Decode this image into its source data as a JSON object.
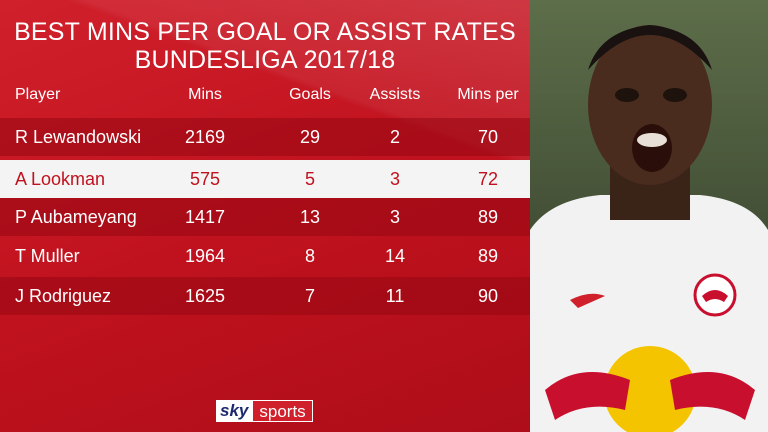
{
  "header": {
    "title_line1": "BEST MINS PER GOAL OR ASSIST RATES",
    "title_line2": "BUNDESLIGA 2017/18"
  },
  "table": {
    "columns": [
      "Player",
      "Mins",
      "Goals",
      "Assists",
      "Mins per"
    ],
    "rows": [
      [
        "R Lewandowski",
        2169,
        29,
        2,
        70
      ],
      [
        "A Lookman",
        575,
        5,
        3,
        72
      ],
      [
        "P Aubameyang",
        1417,
        13,
        3,
        89
      ],
      [
        "T Muller",
        1964,
        8,
        14,
        89
      ],
      [
        "J Rodriguez",
        1625,
        7,
        11,
        90
      ]
    ],
    "highlighted_row": 1
  },
  "logo": {
    "brand": "sky",
    "channel": "sports"
  }
}
